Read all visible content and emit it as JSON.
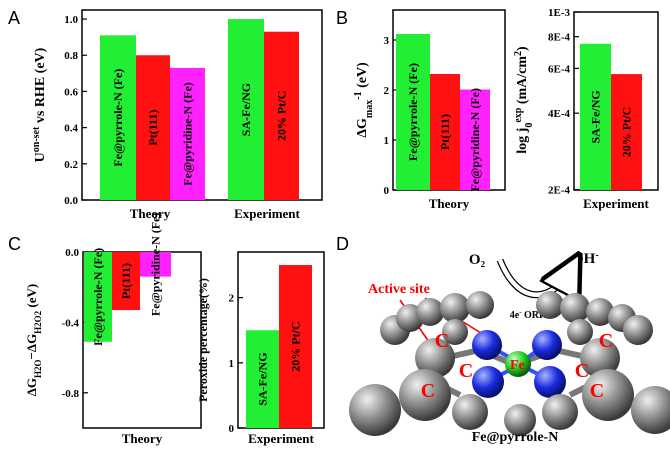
{
  "panel_letters": [
    "A",
    "B",
    "C",
    "D"
  ],
  "colors": {
    "green": "#22ee33",
    "red": "#ff1111",
    "magenta": "#ff22ff",
    "frame": "#000000"
  },
  "chart_data": [
    {
      "id": "A",
      "type": "bar",
      "ylim": [
        0.0,
        1.05
      ],
      "ylabel_main": "U",
      "ylabel_sup": "on-set",
      "ylabel_rest": " vs RHE (eV)",
      "yticks": [
        {
          "v": 0.0,
          "t": "0.0"
        },
        {
          "v": 0.2,
          "t": "0.2"
        },
        {
          "v": 0.4,
          "t": "0.4"
        },
        {
          "v": 0.6,
          "t": "0.6"
        },
        {
          "v": 0.8,
          "t": "0.8"
        },
        {
          "v": 1.0,
          "t": "1.0"
        }
      ],
      "bars": [
        {
          "label": "Fe@pyrrole-N (Fe)",
          "value": 0.91,
          "color": "green"
        },
        {
          "label": "Pt(111)",
          "value": 0.8,
          "color": "red"
        },
        {
          "label": "Fe@pyridine-N (Fe)",
          "value": 0.73,
          "color": "magenta"
        },
        {
          "label": "SA-Fe/NG",
          "value": 1.0,
          "color": "green"
        },
        {
          "label": "20% Pt/C",
          "value": 0.93,
          "color": "red"
        }
      ],
      "groups": [
        "Theory",
        "Experiment"
      ]
    },
    {
      "id": "B-theory",
      "type": "bar",
      "ylim": [
        0,
        3.6
      ],
      "ylabel_main": "ΔG",
      "ylabel_sub": "max",
      "ylabel_sup": "-1",
      "ylabel_rest": " (eV)",
      "yticks": [
        {
          "v": 0,
          "t": "0"
        },
        {
          "v": 1,
          "t": "1"
        },
        {
          "v": 2,
          "t": "2"
        },
        {
          "v": 3,
          "t": "3"
        }
      ],
      "bars": [
        {
          "label": "Fe@pyrrole-N (Fe)",
          "value": 3.12,
          "color": "green"
        },
        {
          "label": "Pt(111)",
          "value": 2.32,
          "color": "red"
        },
        {
          "label": "Fe@pyridine-N (Fe)",
          "value": 2.01,
          "color": "magenta"
        }
      ],
      "groups": [
        "Theory"
      ]
    },
    {
      "id": "B-experiment",
      "type": "bar",
      "scale": "log",
      "ylim_exp": [
        -3.7,
        -3.0
      ],
      "ylabel_main": "log j",
      "ylabel_sub": "0",
      "ylabel_sup": "exp",
      "ylabel_rest": " (mA/cm",
      "ylabel_sup2": "2",
      "ylabel_end": ")",
      "yticks": [
        {
          "v": 0.001,
          "t": "1E-3"
        },
        {
          "v": 0.0008,
          "t": "8E-4"
        },
        {
          "v": 0.0006,
          "t": "6E-4"
        },
        {
          "v": 0.0004,
          "t": "4E-4"
        },
        {
          "v": 0.0002,
          "t": "2E-4"
        }
      ],
      "bars": [
        {
          "label": "SA-Fe/NG",
          "value": 0.00075,
          "color": "green"
        },
        {
          "label": "20% Pt/C",
          "value": 0.00057,
          "color": "red"
        }
      ],
      "groups": [
        "Experiment"
      ]
    },
    {
      "id": "C-theory",
      "type": "bar",
      "ylim": [
        -1.0,
        0.0
      ],
      "ylabel_main": "ΔG",
      "ylabel_sub": "H2O",
      "ylabel_mid": "−ΔG",
      "ylabel_sub2": "H2O2",
      "ylabel_rest": " (eV)",
      "yticks": [
        {
          "v": 0.0,
          "t": "0.0"
        },
        {
          "v": -0.4,
          "t": "-0.4"
        },
        {
          "v": -0.8,
          "t": "-0.8"
        }
      ],
      "bars": [
        {
          "label": "Fe@pyrrole-N (Fe)",
          "value": -0.51,
          "color": "green"
        },
        {
          "label": "Pt(111)",
          "value": -0.33,
          "color": "red"
        },
        {
          "label": "Fe@pyridine-N (Fe)",
          "value": -0.14,
          "color": "magenta"
        }
      ],
      "groups": [
        "Theory"
      ]
    },
    {
      "id": "C-experiment",
      "type": "bar",
      "ylim": [
        0,
        2.7
      ],
      "ylabel_main": "Peroxide percentage(%)",
      "yticks": [
        {
          "v": 0,
          "t": "0"
        },
        {
          "v": 1,
          "t": "1"
        },
        {
          "v": 2,
          "t": "2"
        }
      ],
      "bars": [
        {
          "label": "SA-Fe/NG",
          "value": 1.5,
          "color": "green"
        },
        {
          "label": "20% Pt/C",
          "value": 2.5,
          "color": "red"
        }
      ],
      "groups": [
        "Experiment"
      ]
    }
  ],
  "diagram_d": {
    "reactant": "O₂",
    "product": "OH",
    "product_sup": "-",
    "process": "4e",
    "process_sup": "-",
    "process_rest": " ORR",
    "active_site_label": "Active site",
    "metal_label": "Fe",
    "atom_label": "C",
    "caption": "Fe@pyrrole-N"
  }
}
